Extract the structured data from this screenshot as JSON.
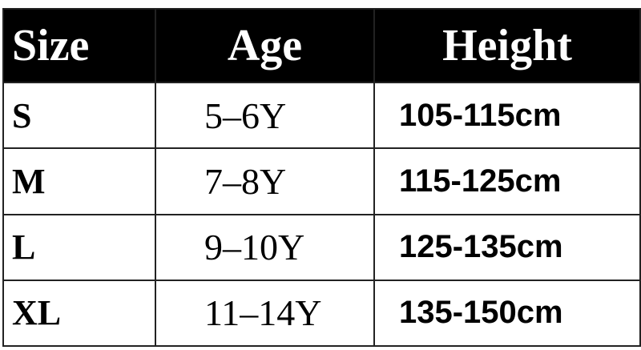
{
  "headers": [
    "Size",
    "Age",
    "Height"
  ],
  "rows": [
    {
      "size": "S",
      "age": "5–6Y",
      "height": "105-115cm"
    },
    {
      "size": "M",
      "age": "7–8Y",
      "height": "115-125cm"
    },
    {
      "size": "L",
      "age": "9–10Y",
      "height": "125-135cm"
    },
    {
      "size": "XL",
      "age": "11–14Y",
      "height": "135-150cm"
    }
  ],
  "colors": {
    "header_bg": "#000000",
    "header_text": "#ffffff",
    "border": "#222222"
  }
}
